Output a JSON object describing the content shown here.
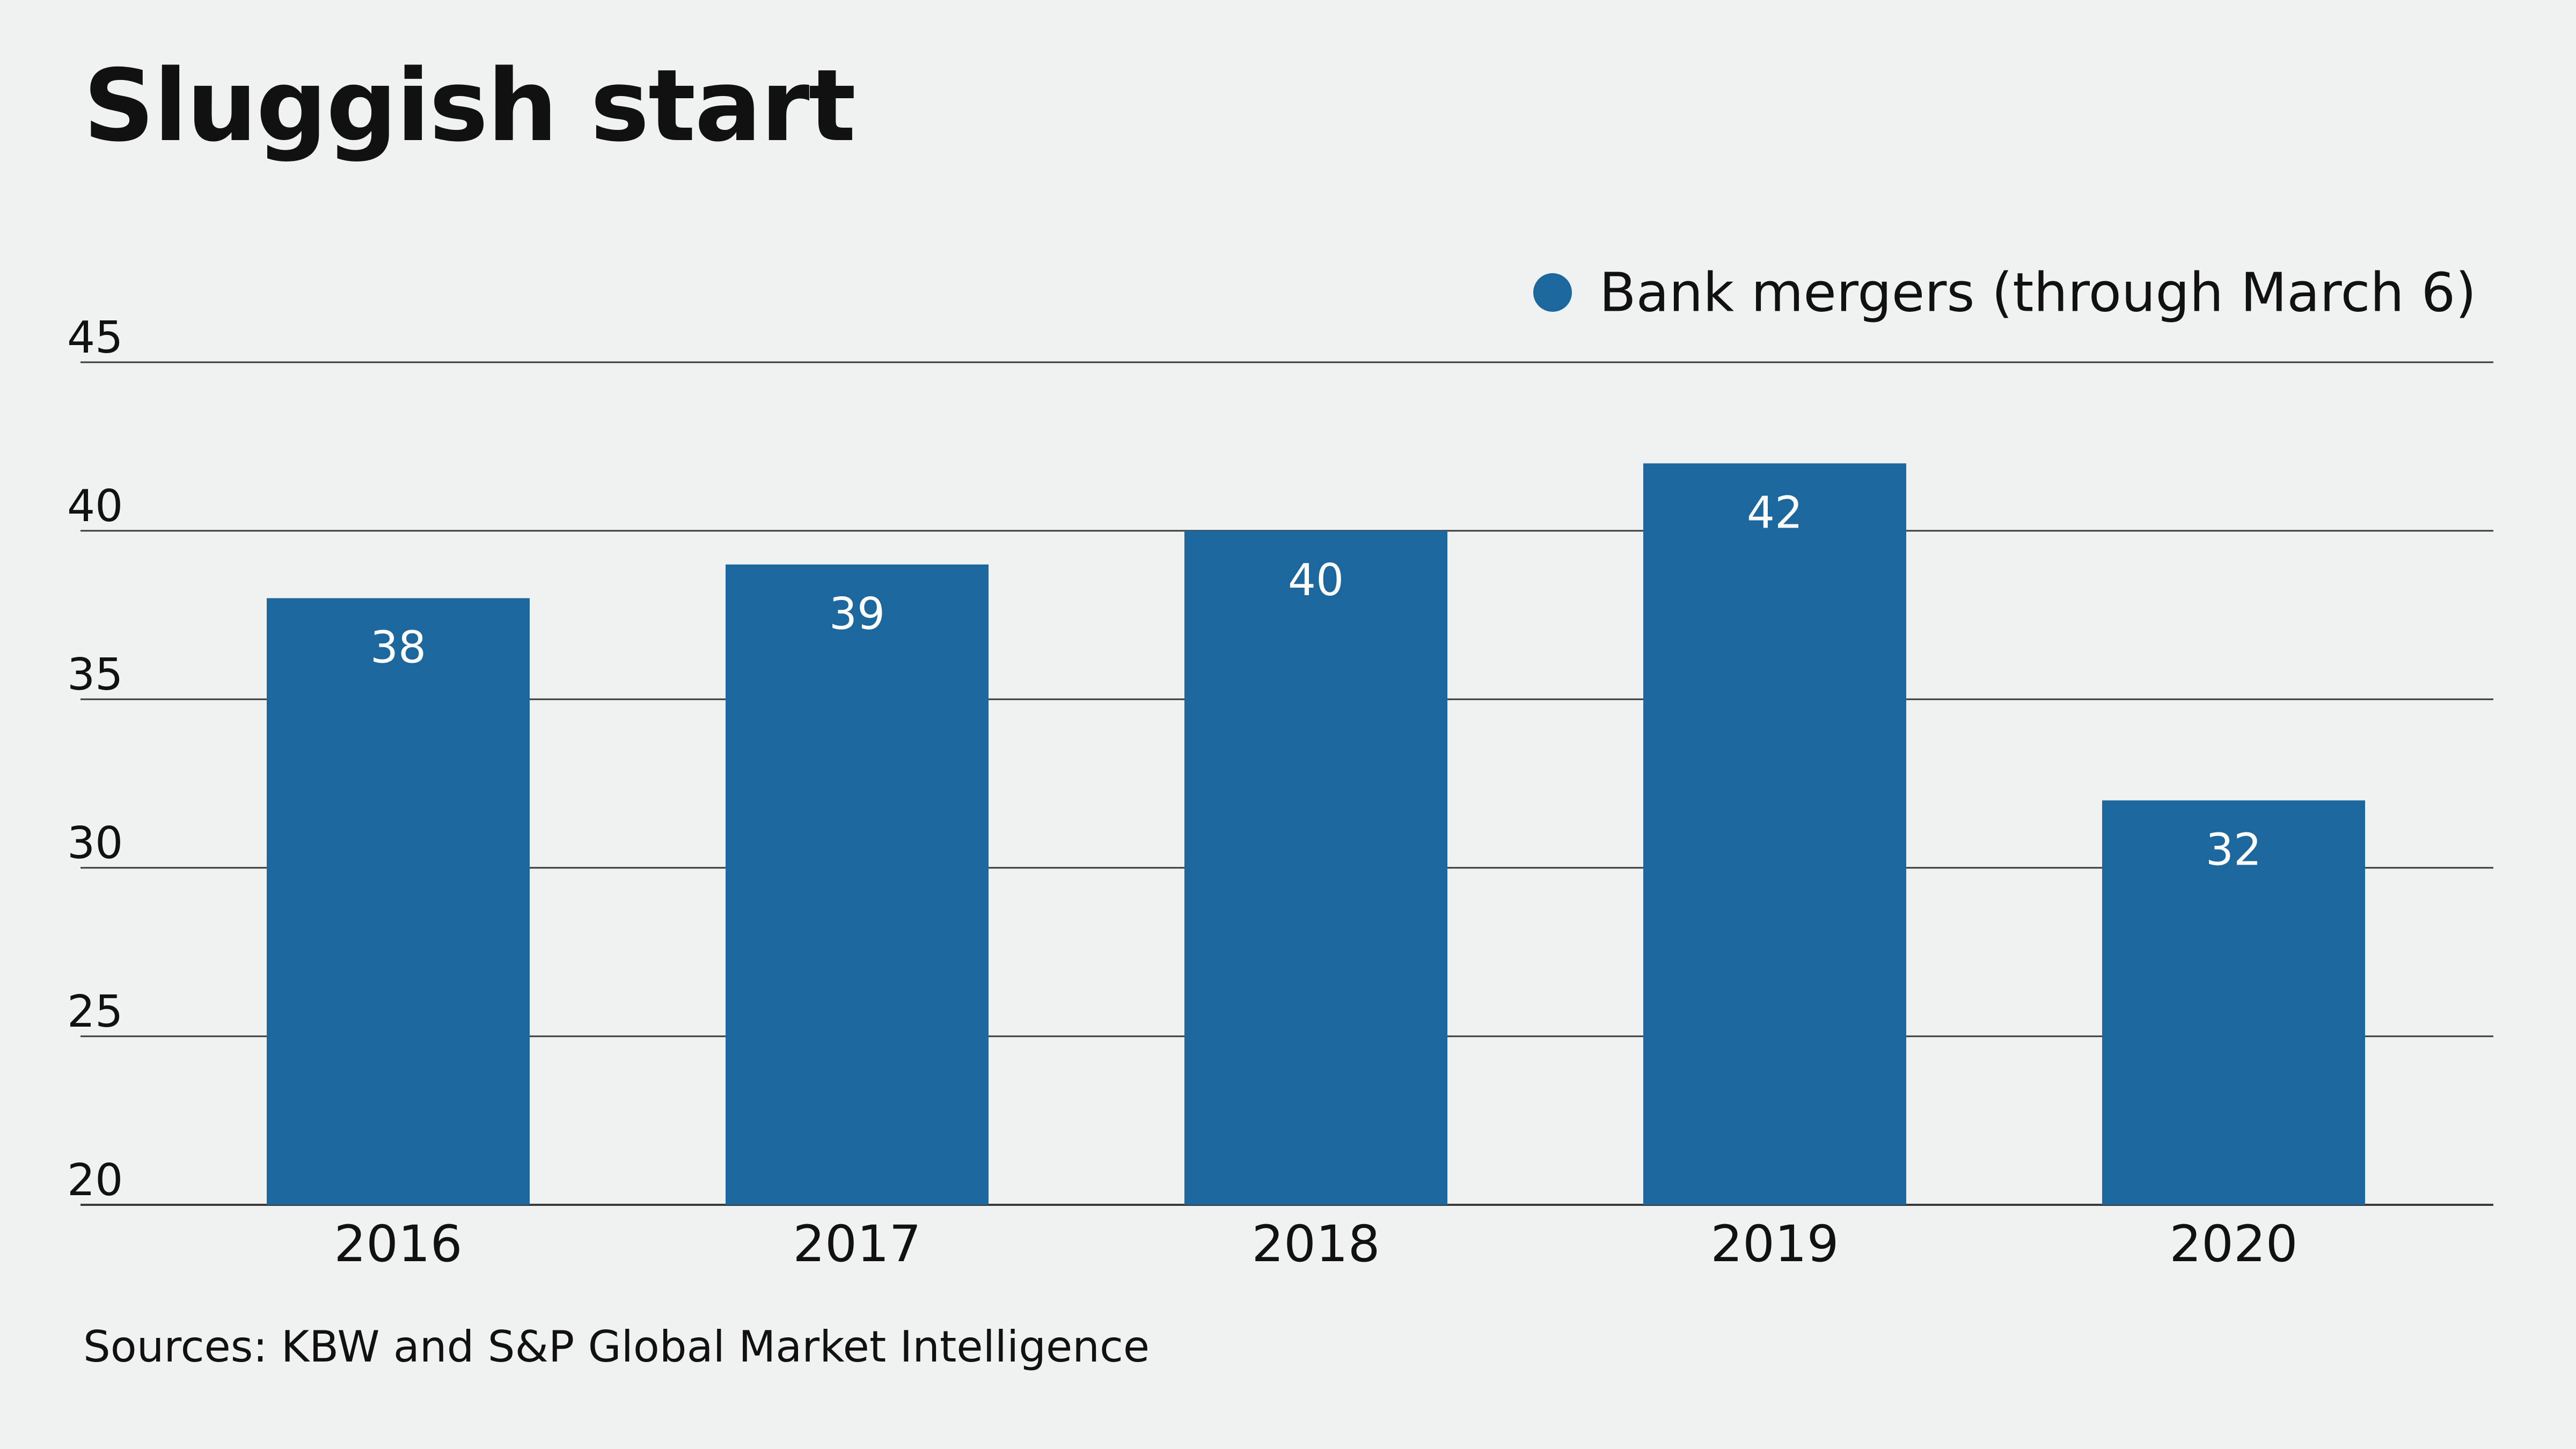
{
  "colors": {
    "background": "#f0f2f1",
    "bar": "#1b679e",
    "gridline": "#3a3a3a",
    "text": "#111111",
    "bar_label": "#ffffff"
  },
  "chart_data": {
    "type": "bar",
    "title": "Sluggish start",
    "categories": [
      "2016",
      "2017",
      "2018",
      "2019",
      "2020"
    ],
    "series": [
      {
        "name": "Bank mergers (through March 6)",
        "values": [
          38,
          39,
          40,
          42,
          32
        ]
      }
    ],
    "data_labels": [
      "38",
      "39",
      "40",
      "42",
      "32"
    ],
    "ylim": [
      20,
      45
    ],
    "yticks": [
      20,
      25,
      30,
      35,
      40,
      45
    ],
    "ytick_labels": [
      "20",
      "25",
      "30",
      "35",
      "40",
      "45"
    ],
    "xlabel": "",
    "ylabel": "",
    "grid": true,
    "legend_position": "top-right",
    "source": "Sources: KBW and S&P Global Market Intelligence"
  }
}
